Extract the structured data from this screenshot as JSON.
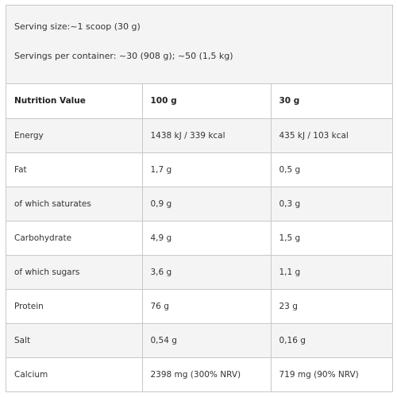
{
  "serving": {
    "size": "Serving size:~1 scoop (30 g)",
    "per_container": "Servings per container: ~30 (908 g); ~50 (1,5 kg)"
  },
  "table": {
    "headers": [
      "Nutrition Value",
      "100 g",
      "30 g"
    ],
    "rows": [
      [
        "Energy",
        "1438 kJ / 339 kcal",
        "435 kJ / 103 kcal"
      ],
      [
        "Fat",
        "1,7 g",
        "0,5 g"
      ],
      [
        "of which saturates",
        "0,9 g",
        "0,3 g"
      ],
      [
        "Carbohydrate",
        "4,9 g",
        "1,5 g"
      ],
      [
        "of which sugars",
        "3,6 g",
        "1,1 g"
      ],
      [
        "Protein",
        "76 g",
        "23 g"
      ],
      [
        "Salt",
        "0,54 g",
        "0,16 g"
      ],
      [
        "Calcium",
        "2398 mg (300% NRV)",
        "719 mg (90% NRV)"
      ]
    ]
  }
}
